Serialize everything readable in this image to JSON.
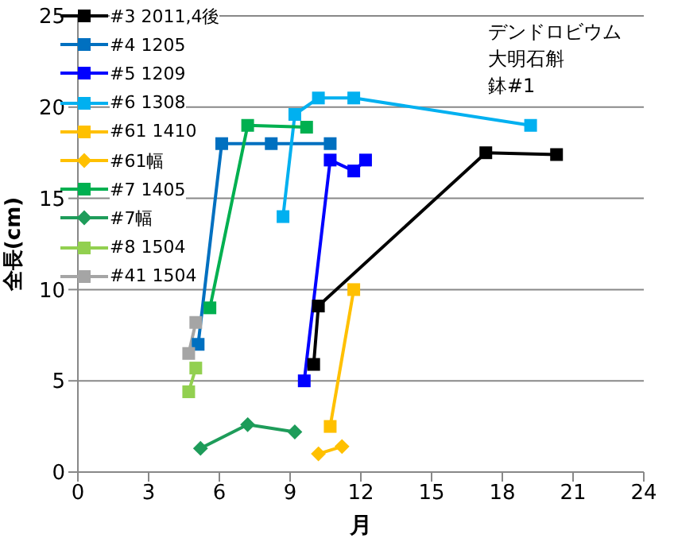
{
  "chart_data": {
    "type": "line",
    "xlabel": "月",
    "ylabel": "全長(cm)",
    "annotations": [
      "デンドロビウム",
      "大明石斛",
      "鉢#1"
    ],
    "xlim": [
      0,
      24
    ],
    "xticks": [
      0,
      3,
      6,
      9,
      12,
      15,
      18,
      21,
      24
    ],
    "ylim": [
      0,
      25
    ],
    "yticks": [
      0,
      5,
      10,
      15,
      20,
      25
    ],
    "grid": "y",
    "legend": "top left",
    "series": [
      {
        "name": "#3 2011,4後",
        "color": "#000000",
        "marker": "square",
        "x": [
          10.0,
          10.2,
          17.3,
          20.3
        ],
        "values": [
          5.9,
          9.1,
          17.5,
          17.4
        ]
      },
      {
        "name": "#4 1205",
        "color": "#0070c0",
        "marker": "square",
        "x": [
          5.1,
          6.1,
          8.2,
          10.7
        ],
        "values": [
          7.0,
          18.0,
          18.0,
          18.0
        ]
      },
      {
        "name": "#5 1209",
        "color": "#0000ff",
        "marker": "square",
        "x": [
          9.6,
          10.7,
          11.7,
          12.2
        ],
        "values": [
          5.0,
          17.1,
          16.5,
          17.1
        ]
      },
      {
        "name": "#6 1308",
        "color": "#00b0f0",
        "marker": "square",
        "x": [
          8.7,
          9.2,
          10.2,
          11.7,
          19.2
        ],
        "values": [
          14.0,
          19.6,
          20.5,
          20.5,
          19.0
        ]
      },
      {
        "name": "#61 1410",
        "color": "#ffc000",
        "marker": "square",
        "x": [
          10.7,
          11.7
        ],
        "values": [
          2.5,
          10.0
        ]
      },
      {
        "name": "#61幅",
        "color": "#ffc000",
        "marker": "diamond",
        "x": [
          10.2,
          11.2
        ],
        "values": [
          1.0,
          1.4
        ]
      },
      {
        "name": "#7 1405",
        "color": "#00b050",
        "marker": "square",
        "x": [
          5.6,
          7.2,
          9.7
        ],
        "values": [
          9.0,
          19.0,
          18.9
        ]
      },
      {
        "name": "#7幅",
        "color": "#1e9c5a",
        "marker": "diamond",
        "x": [
          5.2,
          7.2,
          9.2
        ],
        "values": [
          1.3,
          2.6,
          2.2
        ]
      },
      {
        "name": "#8 1504",
        "color": "#92d050",
        "marker": "square",
        "x": [
          4.7,
          5.0
        ],
        "values": [
          4.4,
          5.7
        ]
      },
      {
        "name": "#41 1504",
        "color": "#a5a5a5",
        "marker": "square",
        "x": [
          4.7,
          5.0
        ],
        "values": [
          6.5,
          8.2
        ]
      }
    ]
  }
}
